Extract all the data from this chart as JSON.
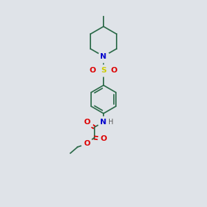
{
  "background_color": "#dfe3e8",
  "bond_color": "#2d6b4a",
  "atom_colors": {
    "N": "#0000cc",
    "O": "#dd0000",
    "S": "#cccc00",
    "C": "#2d6b4a",
    "H": "#555555"
  },
  "figsize": [
    3.0,
    3.0
  ],
  "dpi": 100
}
